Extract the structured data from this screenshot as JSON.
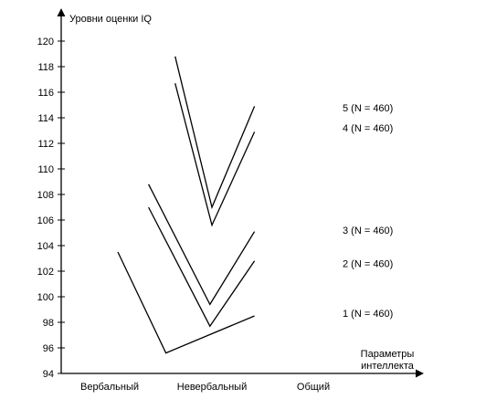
{
  "chart_data": {
    "type": "line",
    "ylabel": "Уровни оценки IQ",
    "xlabel_lines": [
      "Параметры",
      "интеллекта"
    ],
    "categories": [
      "Вербальный",
      "Невербальный",
      "Общий"
    ],
    "ylim": [
      94,
      120
    ],
    "yticks": [
      94,
      96,
      98,
      100,
      102,
      104,
      106,
      108,
      110,
      112,
      114,
      116,
      118,
      120
    ],
    "grid": false,
    "legend": "series labels at right end of lines",
    "series": [
      {
        "name": "1 (N = 460)",
        "label_y": 98.7,
        "points": [
          {
            "x": 0.08,
            "y": 103.5
          },
          {
            "x": 0.55,
            "y": 95.6
          },
          {
            "x": 1.42,
            "y": 98.5
          }
        ]
      },
      {
        "name": "2 (N = 460)",
        "label_y": 102.6,
        "points": [
          {
            "x": 0.38,
            "y": 107.0
          },
          {
            "x": 0.98,
            "y": 97.7
          },
          {
            "x": 1.42,
            "y": 102.8
          }
        ]
      },
      {
        "name": "3 (N = 460)",
        "label_y": 105.2,
        "points": [
          {
            "x": 0.38,
            "y": 108.8
          },
          {
            "x": 0.98,
            "y": 99.4
          },
          {
            "x": 1.42,
            "y": 105.1
          }
        ]
      },
      {
        "name": "4 (N = 460)",
        "label_y": 113.2,
        "points": [
          {
            "x": 0.64,
            "y": 116.7
          },
          {
            "x": 1.0,
            "y": 105.6
          },
          {
            "x": 1.42,
            "y": 112.9
          }
        ]
      },
      {
        "name": "5 (N = 460)",
        "label_y": 114.8,
        "points": [
          {
            "x": 0.64,
            "y": 118.8
          },
          {
            "x": 1.0,
            "y": 107.0
          },
          {
            "x": 1.42,
            "y": 114.9
          }
        ]
      }
    ]
  }
}
